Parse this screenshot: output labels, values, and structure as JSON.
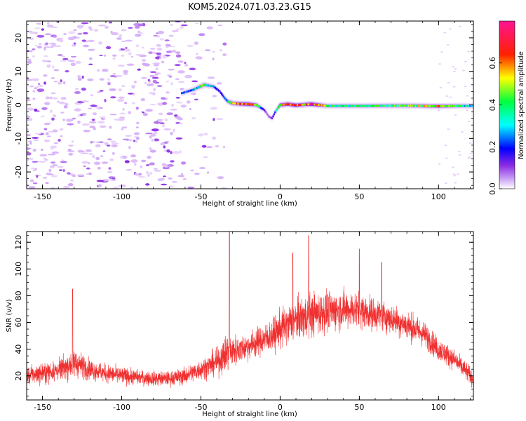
{
  "title": "KOM5.2024.071.03.23.G15",
  "chart_data": [
    {
      "type": "heatmap",
      "xlabel": "Height of straight line (km)",
      "ylabel": "Frequency (Hz)",
      "xlim": [
        -160,
        122
      ],
      "ylim": [
        -25,
        25
      ],
      "x_ticks": [
        -150,
        -100,
        -50,
        0,
        50,
        100
      ],
      "y_ticks": [
        -20,
        -10,
        0,
        10,
        20
      ],
      "colorbar": {
        "label": "Normalized spectral amplitude",
        "range": [
          0,
          0.8
        ],
        "ticks": [
          0.0,
          0.2,
          0.4,
          0.6
        ],
        "colormap": [
          "#ffffff",
          "#d8b4f8",
          "#8a2be2",
          "#0000ff",
          "#00ffff",
          "#00ff00",
          "#ffff00",
          "#ff0000",
          "#ff1493"
        ]
      },
      "ridge": {
        "x": [
          -62,
          -55,
          -48,
          -42,
          -38,
          -35,
          -33,
          -30,
          -25,
          -20,
          -15,
          -10,
          -7,
          -5,
          -3,
          0,
          5,
          10,
          15,
          20,
          30,
          50,
          80,
          100,
          110,
          122
        ],
        "y": [
          3.5,
          4.5,
          6,
          5.5,
          4,
          2,
          1,
          0.5,
          0.3,
          0.2,
          0,
          -1.5,
          -3.5,
          -4,
          -2,
          0,
          0.2,
          -0.1,
          0.1,
          0.2,
          -0.3,
          -0.3,
          -0.2,
          -0.4,
          -0.3,
          -0.3
        ],
        "amplitude": [
          0.3,
          0.35,
          0.5,
          0.35,
          0.25,
          0.3,
          0.45,
          0.6,
          0.7,
          0.75,
          0.55,
          0.2,
          0.15,
          0.2,
          0.3,
          0.6,
          0.7,
          0.7,
          0.6,
          0.8,
          0.45,
          0.45,
          0.5,
          0.6,
          0.5,
          0.35
        ]
      }
    },
    {
      "type": "line",
      "xlabel": "Height of straight line (km)",
      "ylabel": "SNR (v/v)",
      "xlim": [
        -160,
        122
      ],
      "ylim": [
        2,
        128
      ],
      "x_ticks": [
        -150,
        -100,
        -50,
        0,
        50,
        100
      ],
      "y_ticks": [
        20,
        40,
        60,
        80,
        100,
        120
      ],
      "color": "#f03030",
      "envelope": {
        "x": [
          -160,
          -150,
          -140,
          -130,
          -120,
          -110,
          -100,
          -90,
          -80,
          -70,
          -60,
          -50,
          -40,
          -33,
          -25,
          -15,
          -5,
          0,
          10,
          20,
          30,
          40,
          50,
          60,
          70,
          80,
          90,
          100,
          110,
          122
        ],
        "mean": [
          20,
          22,
          24,
          30,
          25,
          22,
          20,
          19,
          18,
          18,
          20,
          25,
          30,
          38,
          40,
          45,
          50,
          55,
          62,
          66,
          68,
          70,
          69,
          66,
          63,
          58,
          52,
          40,
          32,
          18
        ],
        "spread": [
          12,
          14,
          14,
          20,
          14,
          12,
          12,
          10,
          10,
          10,
          12,
          14,
          18,
          26,
          18,
          20,
          22,
          26,
          28,
          30,
          28,
          26,
          24,
          22,
          20,
          20,
          18,
          16,
          14,
          12
        ]
      },
      "peaks": [
        {
          "x": -131,
          "y": 85
        },
        {
          "x": -32,
          "y": 128
        },
        {
          "x": 8,
          "y": 112
        },
        {
          "x": 18,
          "y": 125
        },
        {
          "x": 50,
          "y": 115
        },
        {
          "x": 64,
          "y": 105
        }
      ]
    }
  ]
}
